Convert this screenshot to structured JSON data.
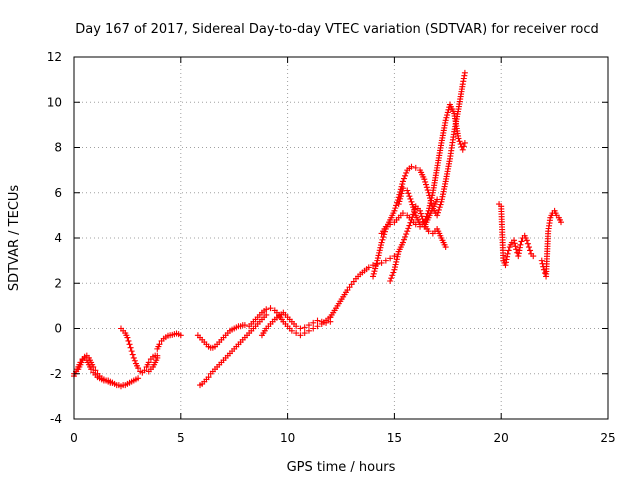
{
  "chart_data": {
    "type": "scatter",
    "title": "Day 167 of 2017, Sidereal Day-to-day VTEC variation (SDTVAR) for receiver rocd",
    "xlabel": "GPS time / hours",
    "ylabel": "SDTVAR / TECUs",
    "xlim": [
      0,
      25
    ],
    "ylim": [
      -4,
      12
    ],
    "xticks": [
      0,
      5,
      10,
      15,
      20,
      25
    ],
    "yticks": [
      -4,
      -2,
      0,
      2,
      4,
      6,
      8,
      10,
      12
    ],
    "grid": true,
    "legend": "none",
    "marker": "+",
    "color": "#ff0000",
    "series": [
      {
        "x": [
          0.0,
          0.1,
          0.2,
          0.3,
          0.4,
          0.5,
          0.6,
          0.7,
          0.8,
          0.9,
          1.0,
          1.1,
          1.2,
          1.3,
          1.4,
          1.5,
          1.6,
          1.7,
          1.8,
          1.9,
          2.0,
          2.1,
          2.2,
          2.3,
          2.4,
          2.5,
          2.6,
          2.7,
          2.8,
          2.9,
          3.0
        ],
        "y": [
          -2.1,
          -1.9,
          -1.7,
          -1.5,
          -1.35,
          -1.3,
          -1.4,
          -1.6,
          -1.8,
          -1.95,
          -2.05,
          -2.15,
          -2.2,
          -2.25,
          -2.3,
          -2.3,
          -2.35,
          -2.4,
          -2.4,
          -2.45,
          -2.5,
          -2.5,
          -2.55,
          -2.5,
          -2.5,
          -2.45,
          -2.4,
          -2.35,
          -2.3,
          -2.25,
          -2.2
        ]
      },
      {
        "x": [
          0.0,
          0.1,
          0.2,
          0.3,
          0.4,
          0.5,
          0.6,
          0.7,
          0.8,
          0.9,
          1.0,
          1.1,
          1.2,
          1.3,
          1.4,
          1.5,
          1.6,
          1.7,
          1.8
        ],
        "y": [
          -2.0,
          -1.9,
          -1.8,
          -1.6,
          -1.4,
          -1.25,
          -1.2,
          -1.3,
          -1.5,
          -1.7,
          -1.85,
          -2.0,
          -2.1,
          -2.2,
          -2.25,
          -2.3,
          -2.3,
          -2.35,
          -2.4
        ]
      },
      {
        "x": [
          2.2,
          2.3,
          2.4,
          2.5,
          2.6,
          2.7,
          2.8,
          2.9,
          3.0,
          3.1,
          3.2,
          3.3,
          3.4,
          3.5,
          3.6,
          3.7,
          3.8,
          3.9
        ],
        "y": [
          0.0,
          -0.1,
          -0.2,
          -0.4,
          -0.7,
          -1.0,
          -1.3,
          -1.55,
          -1.75,
          -1.9,
          -1.95,
          -1.85,
          -1.7,
          -1.5,
          -1.35,
          -1.25,
          -1.2,
          -1.2
        ]
      },
      {
        "x": [
          3.5,
          3.6,
          3.7,
          3.8,
          3.9
        ],
        "y": [
          -1.9,
          -1.8,
          -1.7,
          -1.5,
          -1.3
        ]
      },
      {
        "x": [
          3.9,
          4.0,
          4.1,
          4.2,
          4.3,
          4.4,
          4.5,
          4.6,
          4.7,
          4.8,
          4.9,
          5.0
        ],
        "y": [
          -0.9,
          -0.7,
          -0.55,
          -0.45,
          -0.38,
          -0.32,
          -0.3,
          -0.28,
          -0.25,
          -0.22,
          -0.25,
          -0.3
        ]
      },
      {
        "x": [
          5.8,
          5.9,
          6.0,
          6.1,
          6.2,
          6.3,
          6.4,
          6.5,
          6.6,
          6.7,
          6.8,
          6.9,
          7.0,
          7.1,
          7.2,
          7.3,
          7.4,
          7.5,
          7.6,
          7.7,
          7.8,
          7.9,
          8.0
        ],
        "y": [
          -0.3,
          -0.4,
          -0.5,
          -0.6,
          -0.7,
          -0.8,
          -0.85,
          -0.85,
          -0.8,
          -0.7,
          -0.6,
          -0.5,
          -0.4,
          -0.3,
          -0.2,
          -0.1,
          -0.05,
          0.0,
          0.05,
          0.1,
          0.1,
          0.15,
          0.15
        ]
      },
      {
        "x": [
          5.9,
          6.0,
          6.1,
          6.2,
          6.3,
          6.4,
          6.5,
          6.6,
          6.7,
          6.8,
          6.9,
          7.0,
          7.1,
          7.2,
          7.3,
          7.4,
          7.5,
          7.6,
          7.7,
          7.8,
          7.9,
          8.0,
          8.1,
          8.2,
          8.3,
          8.4,
          8.5,
          8.6,
          8.7,
          8.8,
          8.9,
          9.0
        ],
        "y": [
          -2.5,
          -2.45,
          -2.35,
          -2.25,
          -2.15,
          -2.0,
          -1.9,
          -1.8,
          -1.7,
          -1.6,
          -1.5,
          -1.4,
          -1.3,
          -1.2,
          -1.1,
          -1.0,
          -0.9,
          -0.8,
          -0.7,
          -0.6,
          -0.5,
          -0.4,
          -0.3,
          -0.2,
          -0.1,
          0.0,
          0.1,
          0.2,
          0.3,
          0.4,
          0.5,
          0.6
        ]
      },
      {
        "x": [
          8.2,
          8.4,
          8.6,
          8.8,
          9.0,
          9.2,
          9.4,
          9.6,
          9.8,
          10.0,
          10.2,
          10.4,
          10.6,
          10.8,
          11.0,
          11.2,
          11.4,
          11.6,
          11.8,
          12.0
        ],
        "y": [
          0.1,
          0.3,
          0.5,
          0.7,
          0.85,
          0.9,
          0.8,
          0.6,
          0.3,
          0.1,
          -0.1,
          -0.2,
          -0.3,
          -0.2,
          -0.1,
          0.0,
          0.1,
          0.2,
          0.35,
          0.5
        ]
      },
      {
        "x": [
          8.8,
          9.0,
          9.2,
          9.4,
          9.6,
          9.8,
          10.0,
          10.2,
          10.4,
          10.6,
          10.8,
          11.0,
          11.2,
          11.4,
          11.6,
          11.8,
          12.0
        ],
        "y": [
          -0.3,
          0.0,
          0.2,
          0.4,
          0.55,
          0.7,
          0.5,
          0.3,
          0.1,
          0.0,
          0.05,
          0.15,
          0.25,
          0.35,
          0.3,
          0.25,
          0.3
        ]
      },
      {
        "x": [
          12.0,
          12.2,
          12.4,
          12.6,
          12.8,
          13.0,
          13.2,
          13.4,
          13.6,
          13.8,
          14.0,
          14.2,
          14.4,
          14.6,
          14.8,
          15.0
        ],
        "y": [
          0.5,
          0.8,
          1.1,
          1.4,
          1.7,
          1.95,
          2.2,
          2.4,
          2.55,
          2.7,
          2.8,
          2.85,
          2.9,
          3.0,
          3.1,
          3.2
        ]
      },
      {
        "x": [
          14.0,
          14.2,
          14.4,
          14.6,
          14.8,
          15.0,
          15.2,
          15.4,
          15.6,
          15.8,
          16.0,
          16.2,
          16.4,
          16.6,
          16.8,
          17.0,
          17.2,
          17.4,
          17.6,
          17.8,
          18.0,
          18.2,
          18.3
        ],
        "y": [
          2.3,
          3.0,
          3.8,
          4.4,
          4.8,
          5.2,
          5.8,
          6.5,
          7.0,
          7.15,
          7.1,
          7.0,
          6.6,
          6.0,
          5.3,
          5.0,
          5.6,
          6.5,
          7.5,
          8.7,
          9.7,
          10.8,
          11.3
        ]
      },
      {
        "x": [
          14.4,
          14.6,
          14.8,
          15.0,
          15.2,
          15.4,
          15.6,
          15.8,
          16.0,
          16.2,
          16.4,
          16.6,
          16.8,
          17.0,
          17.2,
          17.4,
          17.6,
          17.8,
          18.0,
          18.2,
          18.3
        ],
        "y": [
          4.2,
          4.5,
          4.6,
          4.7,
          4.9,
          5.1,
          5.0,
          4.8,
          4.6,
          4.5,
          4.7,
          5.2,
          6.0,
          7.1,
          8.2,
          9.2,
          9.9,
          9.5,
          8.4,
          7.9,
          8.2
        ]
      },
      {
        "x": [
          14.8,
          15.0,
          15.2,
          15.4,
          15.6,
          15.8,
          16.0,
          16.2,
          16.4,
          16.6,
          16.8,
          17.0,
          17.2,
          17.4
        ],
        "y": [
          2.1,
          2.6,
          3.4,
          3.8,
          4.3,
          4.8,
          5.4,
          5.2,
          4.6,
          4.3,
          4.2,
          4.4,
          4.0,
          3.6
        ]
      },
      {
        "x": [
          15.2,
          15.4,
          15.6,
          15.8,
          16.0,
          16.2,
          16.4,
          16.6,
          16.8,
          17.0
        ],
        "y": [
          5.5,
          6.2,
          6.1,
          5.6,
          5.0,
          4.6,
          4.5,
          4.9,
          5.3,
          5.7
        ]
      },
      {
        "x": [
          19.9,
          20.0,
          20.1,
          20.2,
          20.3,
          20.4,
          20.5,
          20.6,
          20.7,
          20.8,
          20.9,
          21.0,
          21.1,
          21.2,
          21.3,
          21.4,
          21.5
        ],
        "y": [
          5.5,
          5.4,
          3.0,
          2.8,
          3.3,
          3.6,
          3.8,
          3.9,
          3.5,
          3.2,
          3.7,
          4.0,
          4.1,
          3.9,
          3.6,
          3.3,
          3.2
        ]
      },
      {
        "x": [
          21.9,
          22.0,
          22.1,
          22.2,
          22.3,
          22.4,
          22.5,
          22.6,
          22.7,
          22.8
        ],
        "y": [
          3.0,
          2.6,
          2.3,
          4.3,
          4.9,
          5.1,
          5.2,
          5.0,
          4.9,
          4.7
        ]
      }
    ]
  }
}
